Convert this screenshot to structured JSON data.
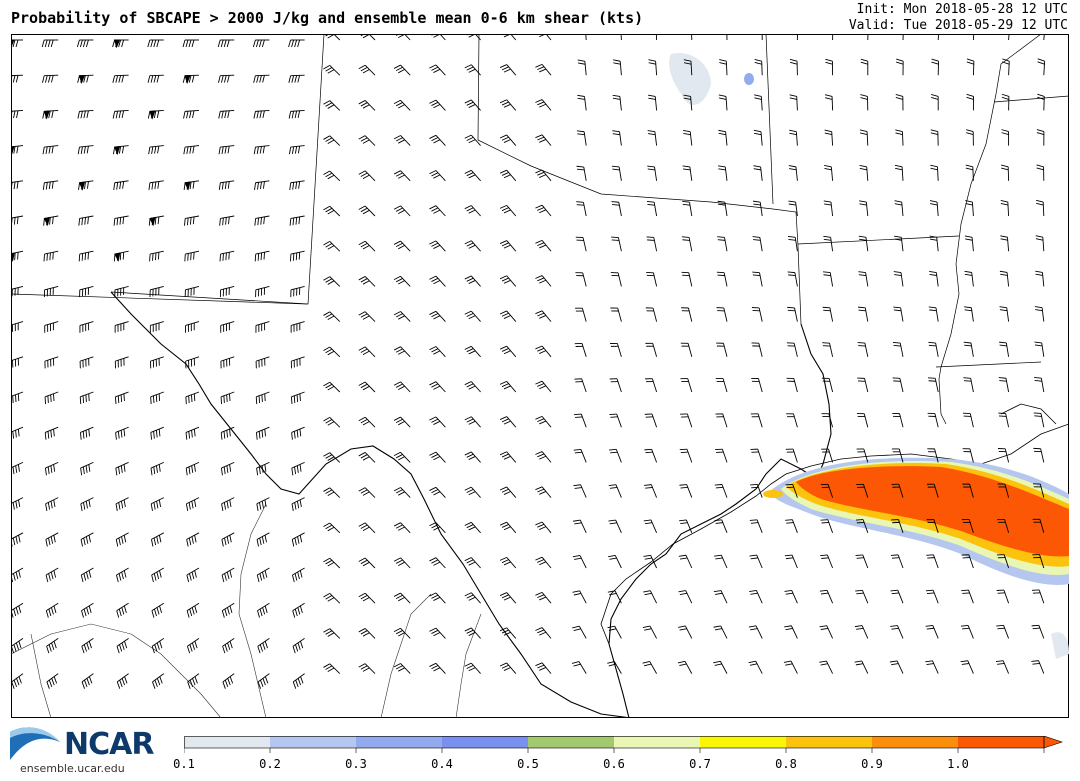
{
  "header": {
    "title": "Probability of SBCAPE > 2000 J/kg and ensemble mean 0-6 km shear (kts)",
    "init": "Init: Mon 2018-05-28 12 UTC",
    "valid": "Valid: Tue 2018-05-29 12 UTC"
  },
  "logo": {
    "wordmark": "NCAR",
    "url": "ensemble.ucar.edu"
  },
  "colorbar": {
    "labels": [
      "0.1",
      "0.2",
      "0.3",
      "0.4",
      "0.5",
      "0.6",
      "0.7",
      "0.8",
      "0.9",
      "1.0"
    ],
    "colors": [
      "#e1e8ef",
      "#b5c7ef",
      "#92abef",
      "#7a90ef",
      "#a3c96f",
      "#eaf6b4",
      "#f9f608",
      "#fbc30d",
      "#fb8f0b",
      "#fb5705"
    ]
  },
  "colors": {
    "background": "#ffffff",
    "border": "#000000",
    "barbs": "#000000"
  }
}
